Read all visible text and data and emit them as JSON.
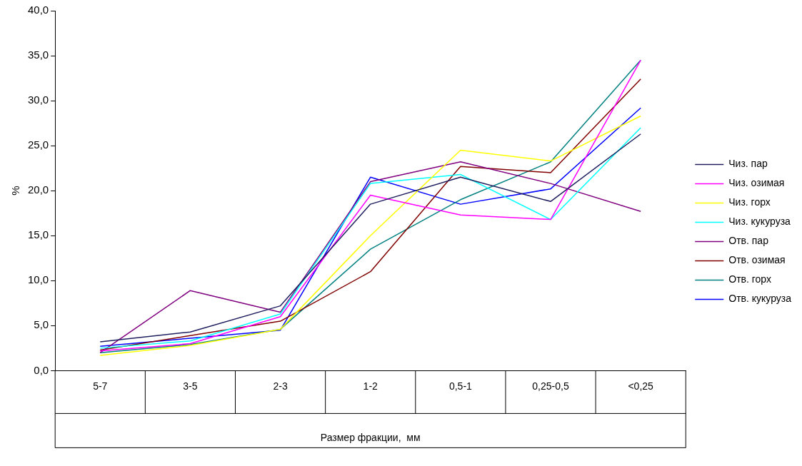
{
  "chart_data": {
    "type": "line",
    "xlabel": "Размер фракции,  мм",
    "ylabel": "%",
    "categories": [
      "5-7",
      "3-5",
      "2-3",
      "1-2",
      "0,5-1",
      "0,25-0,5",
      "<0,25"
    ],
    "ylim": [
      0,
      40
    ],
    "yticks": [
      {
        "value": 0,
        "label": "0,0"
      },
      {
        "value": 5,
        "label": "5,0"
      },
      {
        "value": 10,
        "label": "10,0"
      },
      {
        "value": 15,
        "label": "15,0"
      },
      {
        "value": 20,
        "label": "20,0"
      },
      {
        "value": 25,
        "label": "25,0"
      },
      {
        "value": 30,
        "label": "30,0"
      },
      {
        "value": 35,
        "label": "35,0"
      },
      {
        "value": 40,
        "label": "40,0"
      }
    ],
    "grid": false,
    "legend": "right",
    "marker": "none",
    "line_style": "solid",
    "series": [
      {
        "name": "Чиз. пар",
        "color": "#1f1f5f",
        "values": [
          3.2,
          4.3,
          7.2,
          18.5,
          21.5,
          18.8,
          26.3
        ]
      },
      {
        "name": "Чиз. озимая",
        "color": "#ff00ff",
        "values": [
          2.2,
          3.0,
          6.0,
          19.5,
          17.3,
          16.8,
          34.5
        ]
      },
      {
        "name": "Чиз. горх",
        "color": "#ffff00",
        "values": [
          1.7,
          2.8,
          4.6,
          15.0,
          24.5,
          23.3,
          28.3
        ]
      },
      {
        "name": "Чиз. кукуруза",
        "color": "#00ffff",
        "values": [
          2.5,
          3.3,
          6.3,
          20.8,
          21.8,
          16.8,
          27.0
        ]
      },
      {
        "name": "Отв. пар",
        "color": "#800080",
        "values": [
          2.0,
          8.9,
          6.5,
          21.0,
          23.2,
          20.8,
          17.7
        ]
      },
      {
        "name": "Отв. озимая",
        "color": "#800000",
        "values": [
          2.3,
          3.9,
          5.5,
          11.0,
          22.7,
          22.0,
          32.4
        ]
      },
      {
        "name": "Отв. горх",
        "color": "#008080",
        "values": [
          2.0,
          2.9,
          4.6,
          13.5,
          19.0,
          23.2,
          34.5
        ]
      },
      {
        "name": "Отв. кукуруза",
        "color": "#0000ff",
        "values": [
          2.7,
          3.6,
          4.5,
          21.5,
          18.5,
          20.2,
          29.2
        ]
      }
    ]
  }
}
